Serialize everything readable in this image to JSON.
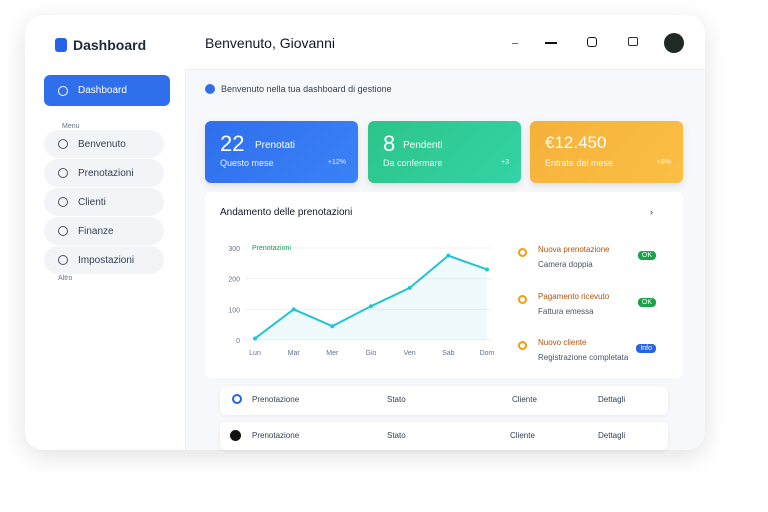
{
  "sidebar": {
    "brand": "Dashboard",
    "active": "Dashboard",
    "section": "Menu",
    "items": [
      "Benvenuto",
      "Prenotazioni",
      "Clienti",
      "Finanze",
      "Impostazioni"
    ],
    "footer": "Altro"
  },
  "header": {
    "greeting": "Benvenuto, Giovanni"
  },
  "notice": "Benvenuto nella tua dashboard di gestione",
  "stats": [
    {
      "value": "22",
      "label": "Prenotati",
      "note": "Questo mese",
      "delta": "+12%"
    },
    {
      "value": "8",
      "label": "Pendenti",
      "note": "Da confermare",
      "delta": "+3"
    },
    {
      "value": "€12.450",
      "note": "Entrate del mese",
      "delta": "+8%"
    }
  ],
  "chart": {
    "title": "Andamento delle prenotazioni",
    "legend": "Prenotazioni",
    "color": "#22c3d6",
    "categories": [
      "Lun",
      "Mar",
      "Mer",
      "Gio",
      "Ven",
      "Sab",
      "Dom"
    ],
    "values": [
      5,
      100,
      45,
      110,
      170,
      275,
      230
    ],
    "ylim": [
      0,
      300
    ],
    "yticks": [
      0,
      100,
      200,
      300
    ],
    "grid": true
  },
  "activity": [
    {
      "title": "Nuova prenotazione",
      "subtitle": "Camera doppia",
      "badge": "OK"
    },
    {
      "title": "Pagamento ricevuto",
      "subtitle": "Fattura emessa",
      "badge": "OK"
    },
    {
      "title": "Nuovo cliente",
      "subtitle": "Registrazione completata",
      "badge": "Info"
    }
  ],
  "table": {
    "rows": [
      [
        "Prenotazione",
        "Stato",
        "Cliente",
        "Dettagli"
      ],
      [
        "Prenotazione",
        "Stato",
        "Cliente",
        "Dettagli"
      ]
    ]
  }
}
